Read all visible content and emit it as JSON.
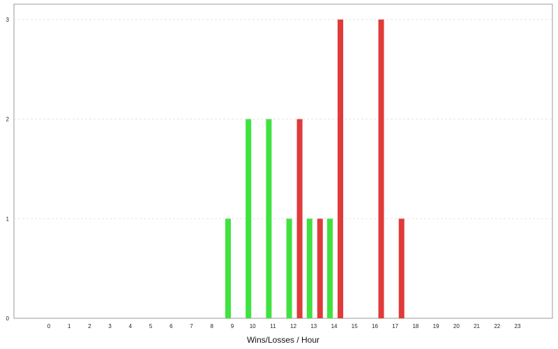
{
  "chart_data": {
    "type": "bar",
    "title": "",
    "xlabel": "Wins/Losses / Hour",
    "ylabel": "",
    "categories": [
      "0",
      "1",
      "2",
      "3",
      "4",
      "5",
      "6",
      "7",
      "8",
      "9",
      "10",
      "11",
      "12",
      "13",
      "14",
      "15",
      "16",
      "17",
      "18",
      "19",
      "20",
      "21",
      "22",
      "23"
    ],
    "ylim": [
      0,
      3
    ],
    "yticks": [
      0,
      1,
      2,
      3
    ],
    "grid": true,
    "legend": "none",
    "series": [
      {
        "color": "#3fe23f",
        "values": [
          0,
          0,
          0,
          0,
          0,
          0,
          0,
          0,
          0,
          1,
          2,
          2,
          1,
          1,
          1,
          0,
          0,
          0,
          0,
          0,
          0,
          0,
          0,
          0
        ]
      },
      {
        "color": "#e03a3a",
        "values": [
          0,
          0,
          0,
          0,
          0,
          0,
          0,
          0,
          0,
          0,
          0,
          0,
          2,
          1,
          3,
          0,
          3,
          1,
          0,
          0,
          0,
          0,
          0,
          0
        ]
      }
    ]
  }
}
